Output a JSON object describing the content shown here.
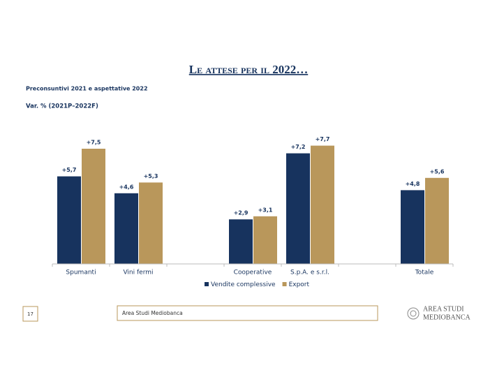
{
  "chart_data": {
    "type": "bar",
    "title": "Le attese per il 2022…",
    "subtitle": "Preconsuntivi 2021 e aspettative 2022",
    "y_label": "Var. % (2021P–2022F)",
    "categories": [
      "Spumanti",
      "Vini fermi",
      null,
      "Cooperative",
      "S.p.A. e s.r.l.",
      null,
      "Totale"
    ],
    "series": [
      {
        "name": "Vendite complessive",
        "color": "#17335e",
        "values": [
          5.7,
          4.6,
          null,
          2.9,
          7.2,
          null,
          4.8
        ],
        "value_labels": [
          "+5,7",
          "+4,6",
          null,
          "+2,9",
          "+7,2",
          null,
          "+4,8"
        ]
      },
      {
        "name": "Export",
        "color": "#b9975b",
        "values": [
          7.5,
          5.3,
          null,
          3.1,
          7.7,
          null,
          5.6
        ],
        "value_labels": [
          "+7,5",
          "+5,3",
          null,
          "+3,1",
          "+7,7",
          null,
          "+5,6"
        ]
      }
    ],
    "legend": "bottom"
  },
  "footer": {
    "page": "17",
    "source": "Area Studi Mediobanca",
    "logo": [
      "AREA STUDI",
      "MEDIOBANCA"
    ]
  }
}
